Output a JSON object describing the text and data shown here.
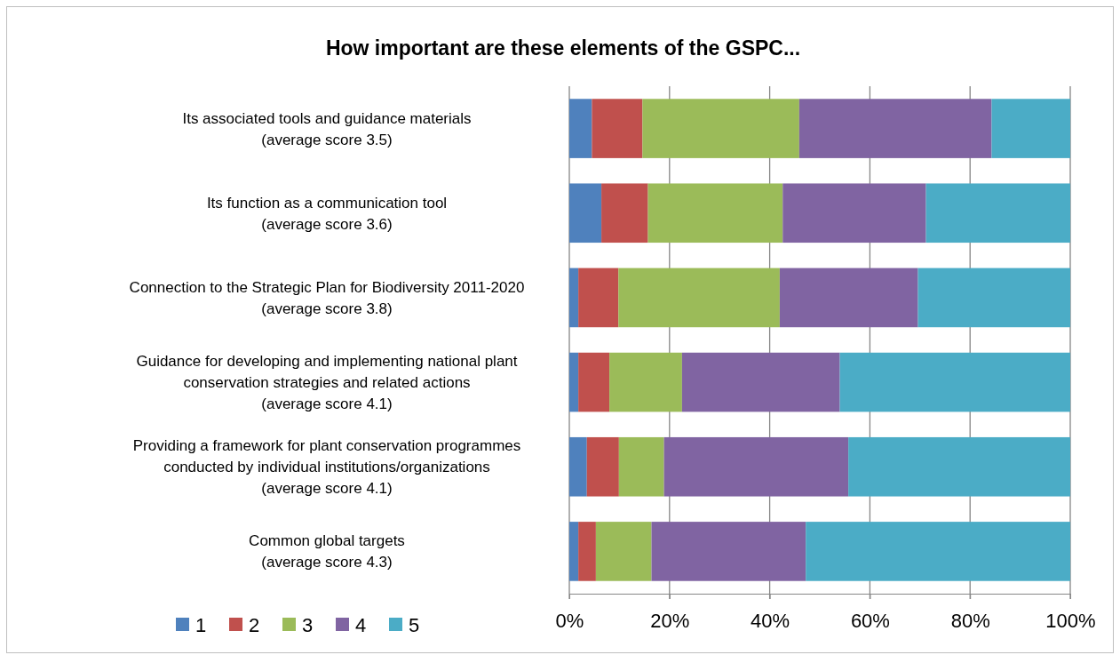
{
  "chart_data": {
    "type": "bar",
    "orientation": "horizontal",
    "stacked": true,
    "title": "How important are these elements of the GSPC...",
    "categories": [
      "Its associated tools and guidance materials\n(average score 3.5)",
      "Its function as a communication tool\n(average score 3.6)",
      "Connection to the Strategic Plan for Biodiversity 2011-2020\n(average score 3.8)",
      "Guidance for developing and implementing national plant\nconservation strategies and related actions\n(average score 4.1)",
      "Providing a framework for plant conservation programmes\nconducted by individual institutions/organizations\n(average score 4.1)",
      "Common global targets\n(average score 4.3)"
    ],
    "series": [
      {
        "name": "1",
        "color": "#4f81bd",
        "values": [
          4.5,
          6.4,
          1.8,
          1.8,
          3.5,
          1.8
        ]
      },
      {
        "name": "2",
        "color": "#c0504d",
        "values": [
          10.1,
          9.3,
          8.0,
          6.2,
          6.4,
          3.5
        ]
      },
      {
        "name": "3",
        "color": "#9bbb59",
        "values": [
          31.3,
          26.9,
          32.2,
          14.5,
          9.0,
          11.1
        ]
      },
      {
        "name": "4",
        "color": "#8064a2",
        "values": [
          38.4,
          28.6,
          27.6,
          31.5,
          36.8,
          30.8
        ]
      },
      {
        "name": "5",
        "color": "#4bacc6",
        "values": [
          15.7,
          28.8,
          30.4,
          46.0,
          44.3,
          52.8
        ]
      }
    ],
    "xlim": [
      0,
      100
    ],
    "xticks": [
      {
        "value": 0,
        "label": "0%"
      },
      {
        "value": 20,
        "label": "20%"
      },
      {
        "value": 40,
        "label": "40%"
      },
      {
        "value": 60,
        "label": "60%"
      },
      {
        "value": 80,
        "label": "80%"
      },
      {
        "value": 100,
        "label": "100%"
      }
    ],
    "grid": "x",
    "legend": "bottom left"
  }
}
